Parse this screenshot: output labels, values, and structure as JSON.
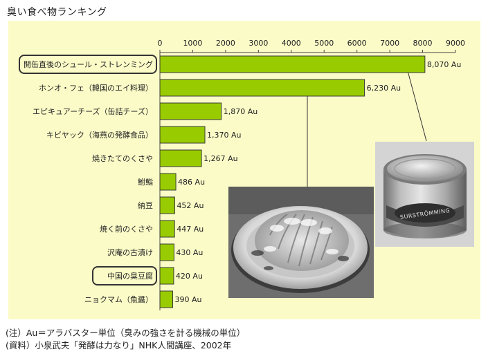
{
  "header": {
    "title": "臭い食べ物ランキング"
  },
  "chart_data": {
    "type": "bar",
    "orientation": "horizontal",
    "title": "臭い食べ物ランキング",
    "xlim": [
      0,
      9000
    ],
    "ticks": [
      "0",
      "1000",
      "2000",
      "3000",
      "4000",
      "5000",
      "6000",
      "7000",
      "8000",
      "9000"
    ],
    "bar_color": "#99cc00",
    "categories": [
      "開缶直後のシュール・ストレンミング",
      "ホンオ・フェ（韓国のエイ料理）",
      "エピキュアーチーズ（缶詰チーズ）",
      "キビヤック（海燕の発酵食品）",
      "焼きたてのくさや",
      "鮒鮨",
      "納豆",
      "焼く前のくさや",
      "沢庵の古漬け",
      "中国の臭豆腐",
      "ニョクマム（魚醤）"
    ],
    "values": [
      8070,
      6230,
      1870,
      1370,
      1267,
      486,
      452,
      447,
      430,
      420,
      390
    ],
    "value_labels": [
      "8,070 Au",
      "6,230 Au",
      "1,870 Au",
      "1,370 Au",
      "1,267 Au",
      "486 Au",
      "452 Au",
      "447 Au",
      "430 Au",
      "420 Au",
      "390 Au"
    ],
    "highlighted": [
      "開缶直後のシュール・ストレンミング",
      "中国の臭豆腐"
    ]
  },
  "photos": {
    "dish": {
      "kind": "photo-hongeo-dish"
    },
    "can": {
      "kind": "photo-surstromming-can",
      "can_text": "SURSTRÖMMING"
    }
  },
  "notes": {
    "unit_note": "(注）Au＝アラバスター単位（臭みの強さを計る機械の単位）",
    "source_note": "(資料）小泉武夫「発酵は力なり」NHK人間講座、2002年"
  }
}
